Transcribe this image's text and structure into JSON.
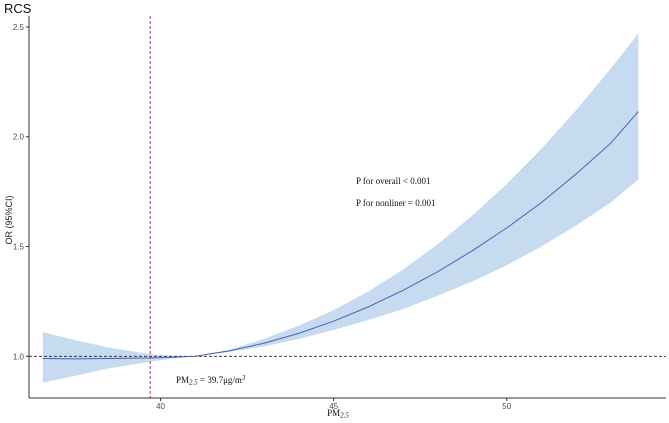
{
  "chart_data": {
    "type": "line",
    "title": "RCS",
    "xlabel_main": "PM",
    "xlabel_sub": "2.5",
    "ylabel": "OR (95%CI)",
    "xlim": [
      36.2,
      54.6
    ],
    "ylim": [
      0.81,
      2.55
    ],
    "x_ticks": [
      40,
      45,
      50
    ],
    "y_ticks": [
      1.0,
      1.5,
      2.0,
      2.5
    ],
    "x_tick_labels": [
      "40",
      "45",
      "50"
    ],
    "y_tick_labels": [
      "1.0",
      "1.5",
      "2.0",
      "2.5"
    ],
    "series": [
      {
        "x": [
          36.6,
          37.5,
          38.5,
          39.7,
          40.5,
          41.0,
          42.0,
          43.0,
          44.0,
          45.0,
          46.0,
          47.0,
          48.0,
          49.0,
          50.0,
          51.0,
          52.0,
          53.0,
          53.8
        ],
        "y": [
          0.99,
          0.988,
          0.99,
          0.992,
          0.997,
          1.0,
          1.025,
          1.06,
          1.105,
          1.16,
          1.225,
          1.3,
          1.385,
          1.48,
          1.585,
          1.7,
          1.83,
          1.97,
          2.115
        ],
        "lower": [
          0.88,
          0.91,
          0.945,
          0.975,
          0.993,
          1.0,
          1.02,
          1.045,
          1.08,
          1.12,
          1.165,
          1.215,
          1.275,
          1.34,
          1.415,
          1.5,
          1.595,
          1.7,
          1.805
        ],
        "upper": [
          1.11,
          1.075,
          1.04,
          1.01,
          1.001,
          1.0,
          1.03,
          1.08,
          1.14,
          1.21,
          1.295,
          1.395,
          1.51,
          1.64,
          1.785,
          1.945,
          2.12,
          2.31,
          2.47
        ]
      }
    ],
    "reference_y": 1.0,
    "vline_x": 39.7,
    "annotations": {
      "overall": "P for overall < 0.001",
      "nonliner": "P for nonliner = 0.001",
      "threshold_prefix": "PM",
      "threshold_sub": "2.5",
      "threshold_value": " = 39.7μg/m",
      "threshold_sup": "3"
    },
    "colors": {
      "line": "#4a62b4",
      "band": "#c6dbef",
      "reference": "#222222",
      "vline": "#b2182b",
      "axis": "#333333"
    },
    "grid": false
  }
}
